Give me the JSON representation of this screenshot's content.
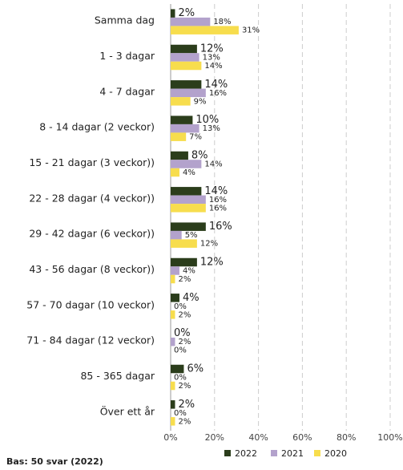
{
  "chart_data": {
    "type": "bar",
    "orientation": "horizontal",
    "categories": [
      "Samma dag",
      "1 - 3 dagar",
      "4 - 7 dagar",
      "8 - 14 dagar (2 veckor)",
      "15 - 21 dagar (3 veckor))",
      "22 - 28 dagar (4 veckor))",
      "29 - 42 dagar (6 veckor))",
      "43 - 56 dagar (8 veckor))",
      "57 - 70 dagar (10 veckor)",
      "71 - 84 dagar (12 veckor)",
      "85 - 365 dagar",
      "Över ett år"
    ],
    "series": [
      {
        "name": "2022",
        "color": "#2b3d1b",
        "values": [
          2,
          12,
          14,
          10,
          8,
          14,
          16,
          12,
          4,
          0,
          6,
          2
        ],
        "value_labels": [
          "2%",
          "12%",
          "14%",
          "10%",
          "8%",
          "14%",
          "16%",
          "12%",
          "4%",
          "0%",
          "6%",
          "2%"
        ]
      },
      {
        "name": "2021",
        "color": "#b3a2cc",
        "values": [
          18,
          13,
          16,
          13,
          14,
          16,
          5,
          4,
          0,
          2,
          0,
          0
        ],
        "value_labels": [
          "18%",
          "13%",
          "16%",
          "13%",
          "14%",
          "16%",
          "5%",
          "4%",
          "0%",
          "2%",
          "0%",
          "0%"
        ]
      },
      {
        "name": "2020",
        "color": "#f7dd4d",
        "values": [
          31,
          14,
          9,
          7,
          4,
          16,
          12,
          2,
          2,
          0,
          2,
          2
        ],
        "value_labels": [
          "31%",
          "14%",
          "9%",
          "7%",
          "4%",
          "16%",
          "12%",
          "2%",
          "2%",
          "0%",
          "2%",
          "2%"
        ]
      }
    ],
    "xlim": [
      0,
      100
    ],
    "xticks": [
      {
        "value": 0,
        "label": "0%"
      },
      {
        "value": 20,
        "label": "20%"
      },
      {
        "value": 40,
        "label": "40%"
      },
      {
        "value": 60,
        "label": "60%"
      },
      {
        "value": 80,
        "label": "80%"
      },
      {
        "value": 100,
        "label": "100%"
      }
    ],
    "grid": true,
    "legend": "bottom",
    "footnote": "Bas: 50 svar (2022)"
  }
}
